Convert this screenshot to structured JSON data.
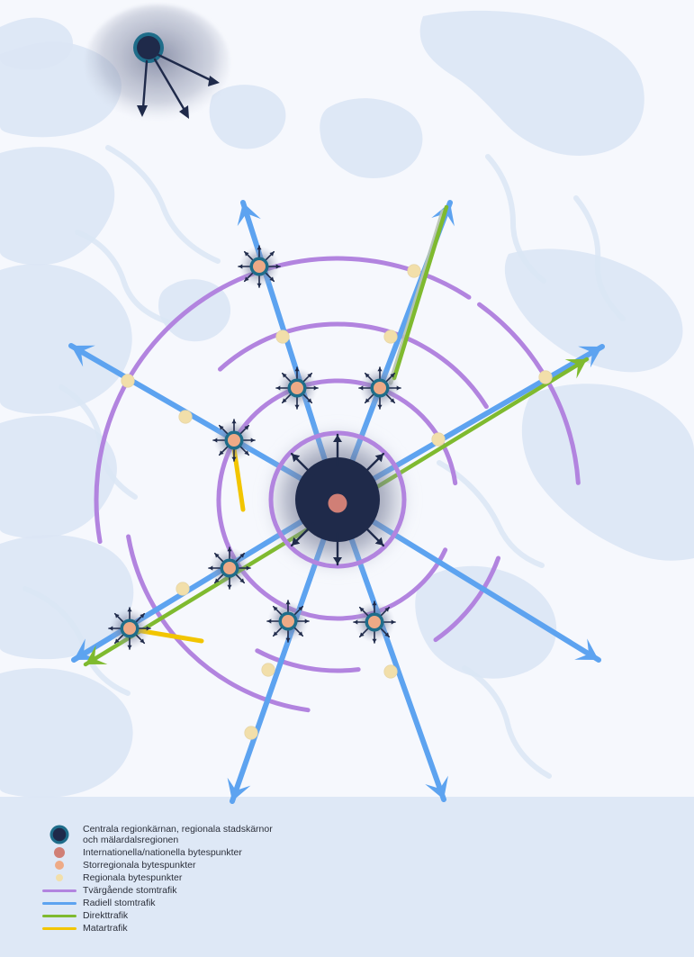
{
  "legend": {
    "items": [
      {
        "label_line1": "Centrala regionkärnan, regionala stadskärnor",
        "label_line2": "och mälardalsregionen",
        "symbol": "core-node",
        "color": "#1f2a4a",
        "ring_color": "#1f6d8a"
      },
      {
        "label": "Internationella/nationella bytespunkter",
        "symbol": "large-dot",
        "color": "#d07f76"
      },
      {
        "label": "Storregionala bytespunkter",
        "symbol": "medium-dot",
        "color": "#eeaa86"
      },
      {
        "label": "Regionala bytespunkter",
        "symbol": "small-dot",
        "color": "#f2dfaa"
      },
      {
        "label": "Tvärgående stomtrafik",
        "symbol": "line",
        "color": "#b284df"
      },
      {
        "label": "Radiell stomtrafik",
        "symbol": "line",
        "color": "#5da3f0"
      },
      {
        "label": "Direkttrafik",
        "symbol": "line",
        "color": "#7fba2f"
      },
      {
        "label": "Matartrafik",
        "symbol": "line",
        "color": "#f2c500"
      }
    ]
  },
  "colors": {
    "background": "#dfeaf6",
    "land": "#f6f8fd",
    "water": "#dbe6f5",
    "halo": "#8d93a7",
    "core_dark": "#1f2a4a",
    "core_ring": "#1f6d8a",
    "radial": "#5da3f0",
    "tangential": "#b284df",
    "direct": "#7fba2f",
    "feeder": "#f2c500",
    "international": "#d07f76",
    "storregional": "#eeaa86",
    "regional": "#f2dfaa",
    "arrow_dark": "#1f2a4a"
  }
}
